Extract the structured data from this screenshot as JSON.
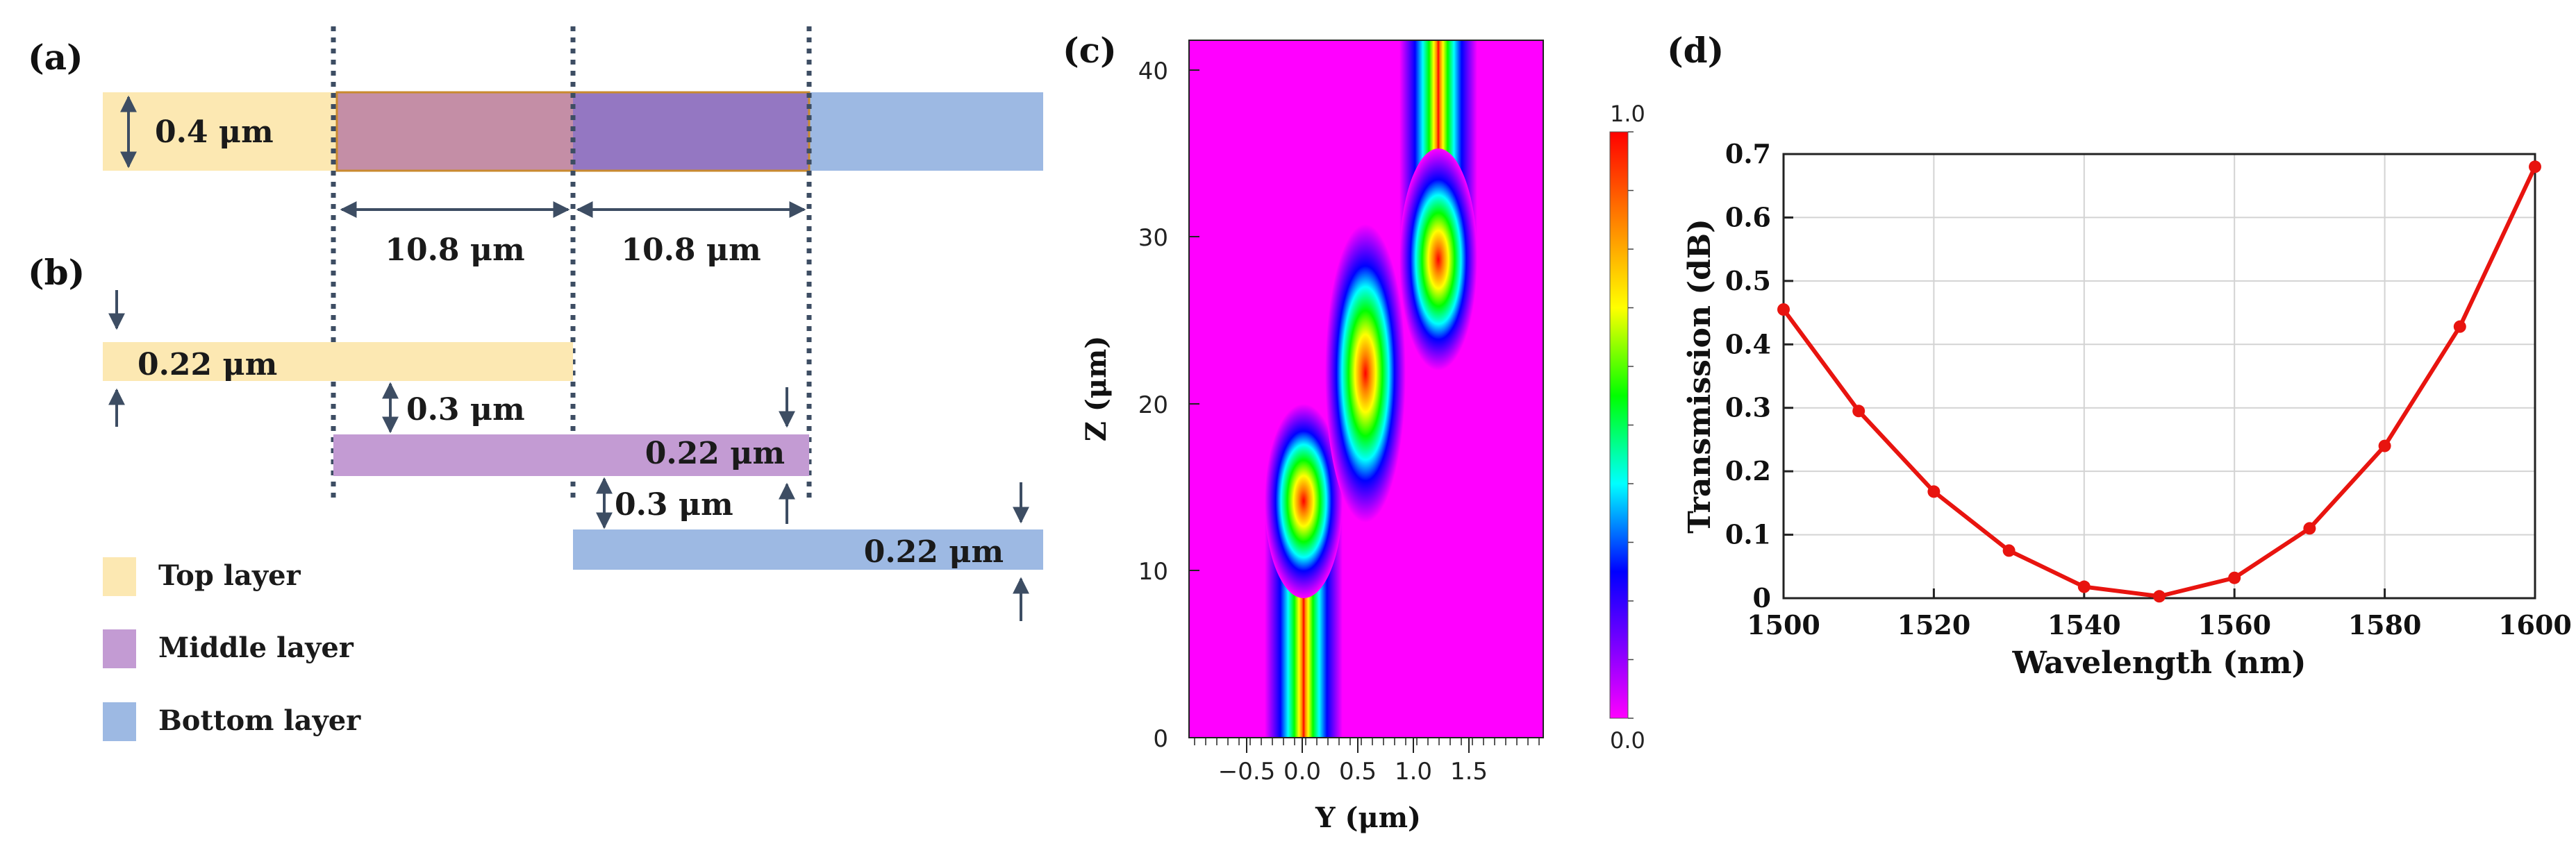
{
  "panel_labels": {
    "a": "(a)",
    "b": "(b)",
    "c": "(c)",
    "d": "(d)"
  },
  "colors": {
    "top_layer": "#FCE8B2",
    "middle_layer": "#C39BD3",
    "bottom_layer": "#9DB9E3",
    "overlap_top_mid": "#C48EA6",
    "overlap_mid_bot": "#9477C2",
    "dim_arrow": "#3D4D63",
    "dotted_line": "#3D4D63",
    "curve": "#E8140F",
    "field_background": "#FF00FF"
  },
  "panel_a": {
    "thickness_label": "0.4 μm",
    "span_left_label": "10.8 μm",
    "span_right_label": "10.8 μm"
  },
  "panel_b": {
    "top_thickness": "0.22 μm",
    "gap_top_middle": "0.3 μm",
    "middle_thickness": "0.22 μm",
    "gap_middle_bottom": "0.3 μm",
    "bottom_thickness": "0.22 μm"
  },
  "legend": {
    "items": [
      {
        "label": "Top layer",
        "color": "#FCE8B2"
      },
      {
        "label": "Middle layer",
        "color": "#C39BD3"
      },
      {
        "label": "Bottom layer",
        "color": "#9DB9E3"
      }
    ]
  },
  "panel_c": {
    "xlabel": "Y (μm)",
    "ylabel": "Z (μm)",
    "x_ticks": [
      "−0.5",
      "0.0",
      "0.5",
      "1.0",
      "1.5"
    ],
    "y_ticks": [
      "0",
      "10",
      "20",
      "30",
      "40"
    ],
    "colorbar_max": "1.0",
    "colorbar_min": "0.0"
  },
  "chart_data": {
    "type": "line",
    "title": "",
    "xlabel": "Wavelength (nm)",
    "ylabel": "Transmission (dB)",
    "xlim": [
      1500,
      1600
    ],
    "ylim": [
      0,
      0.7
    ],
    "x_ticks": [
      "1500",
      "1520",
      "1540",
      "1560",
      "1580",
      "1600"
    ],
    "y_ticks": [
      "0",
      "0.1",
      "0.2",
      "0.3",
      "0.4",
      "0.5",
      "0.6",
      "0.7"
    ],
    "grid": true,
    "series": [
      {
        "name": "Transmission",
        "x": [
          1500,
          1510,
          1520,
          1530,
          1540,
          1550,
          1560,
          1570,
          1580,
          1590,
          1600
        ],
        "values": [
          0.455,
          0.295,
          0.168,
          0.075,
          0.018,
          0.003,
          0.032,
          0.11,
          0.24,
          0.428,
          0.68
        ]
      }
    ]
  }
}
